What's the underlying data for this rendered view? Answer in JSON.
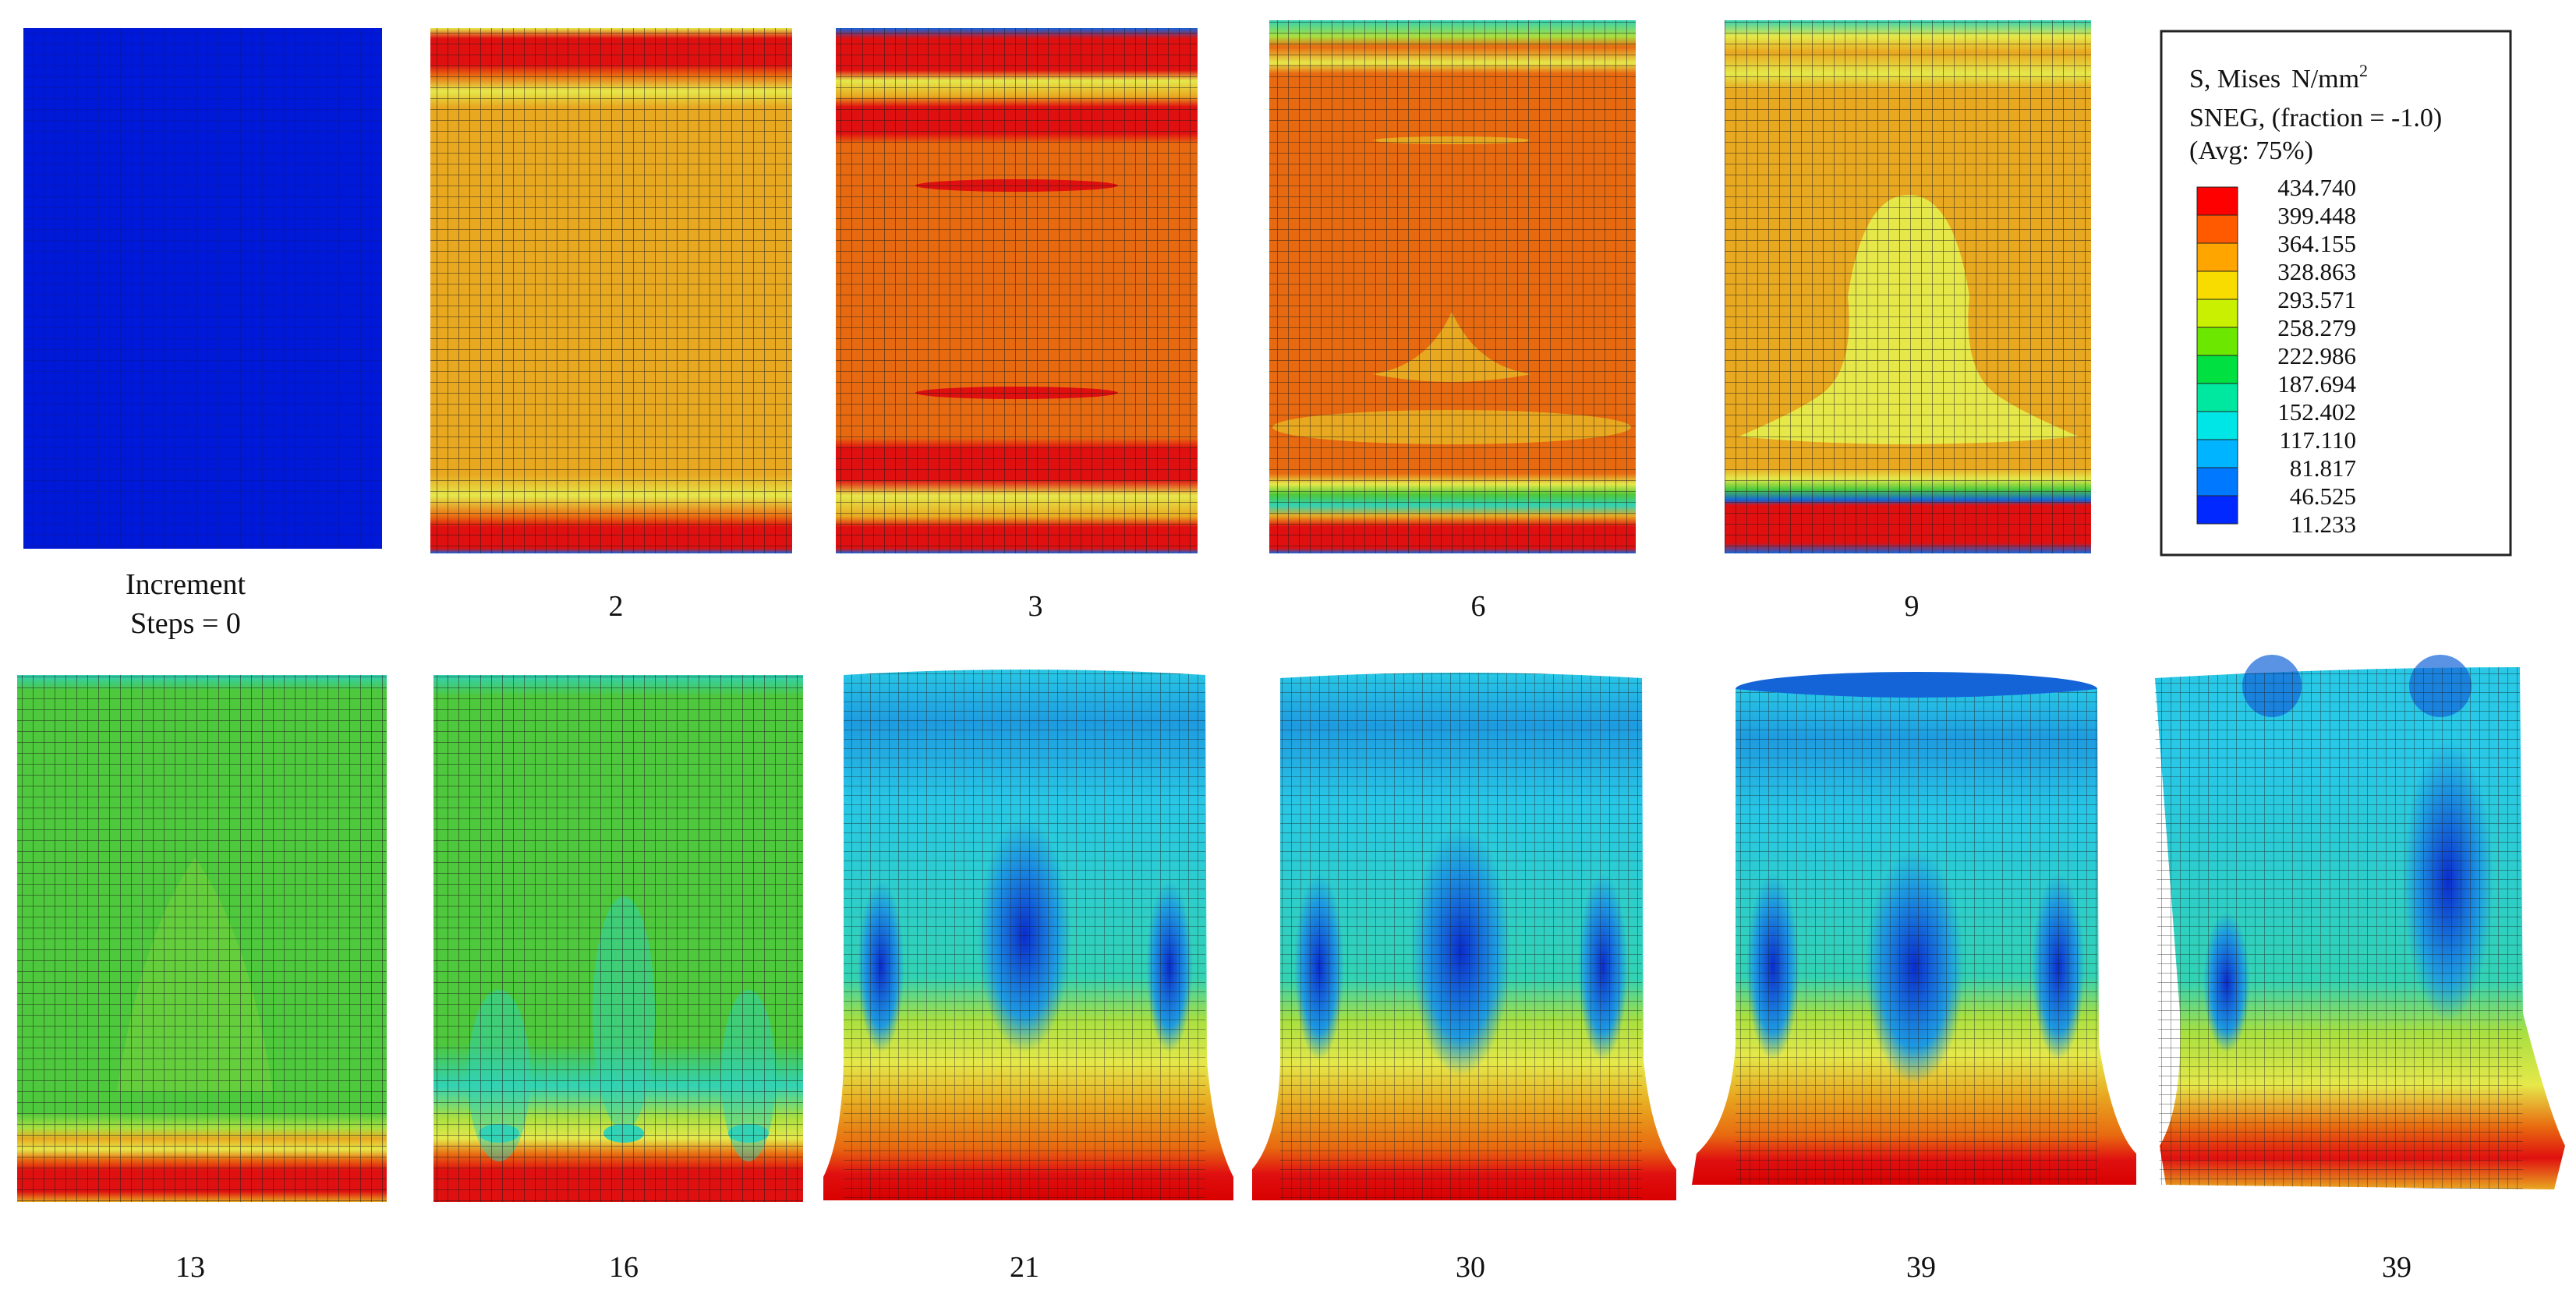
{
  "row1": [
    {
      "label_line1": "Increment",
      "label_line2": "Steps = 0"
    },
    {
      "label": "2"
    },
    {
      "label": "3"
    },
    {
      "label": "6"
    },
    {
      "label": "9"
    }
  ],
  "row2": [
    {
      "label": "13"
    },
    {
      "label": "16"
    },
    {
      "label": "21"
    },
    {
      "label": "30"
    },
    {
      "label": "39"
    },
    {
      "label": "39"
    }
  ],
  "legend": {
    "line1": "S, Mises",
    "unit": "N/mm",
    "unit_exp": "2",
    "line2": "SNEG, (fraction = -1.0)",
    "line3": "(Avg: 75%)",
    "values": [
      "434.740",
      "399.448",
      "364.155",
      "328.863",
      "293.571",
      "258.279",
      "222.986",
      "187.694",
      "152.402",
      "117.110",
      "81.817",
      "46.525",
      "11.233"
    ],
    "colors": [
      "#ff0000",
      "#ff5a00",
      "#ffa500",
      "#f8dc00",
      "#c8f000",
      "#6ce800",
      "#00e040",
      "#00e8a0",
      "#00e6e6",
      "#00b4ff",
      "#0078ff",
      "#0028ff",
      "#0000e6"
    ]
  },
  "palette": {
    "red": "#e01010",
    "deep_red": "#d90000",
    "orange": "#e86a10",
    "orange_yellow": "#e8a820",
    "yellow": "#e6e84a",
    "yellow_green": "#a8e040",
    "green": "#4ec83c",
    "teal": "#32d2b4",
    "cyan": "#28c8e6",
    "light_blue": "#1e9be0",
    "blue": "#1464d8",
    "dark_blue": "#0a2ccc",
    "navy": "#001ebe",
    "mesh": "#1a1a1a"
  }
}
